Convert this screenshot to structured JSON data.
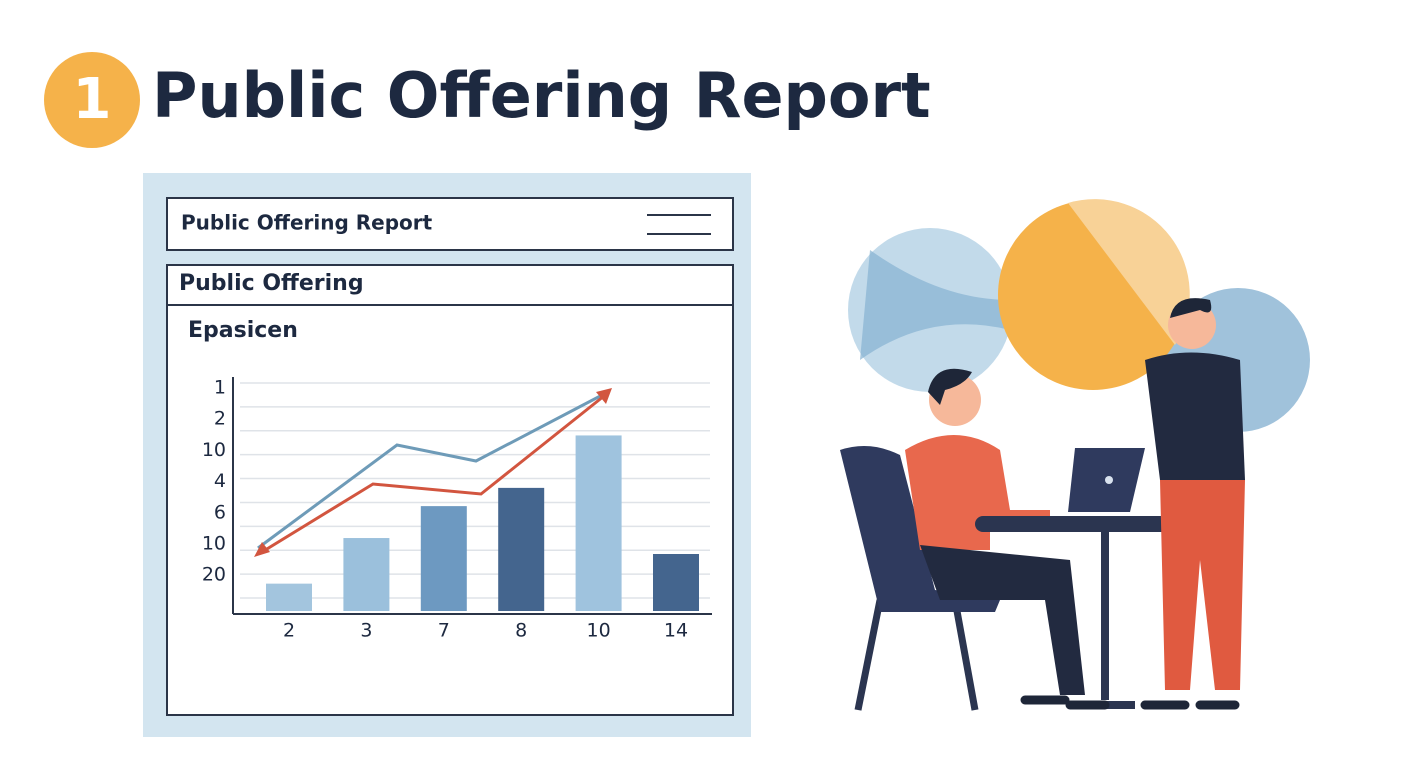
{
  "header": {
    "badge": "1",
    "title": "Public Offering Report"
  },
  "panel": {
    "title": "Public Offering Report",
    "section": "Public Offering",
    "subtitle": "Epasicen"
  },
  "chart_data": {
    "type": "bar",
    "categories": [
      "2",
      "3",
      "7",
      "8",
      "10",
      "14"
    ],
    "values": [
      1.2,
      3.2,
      4.6,
      5.4,
      7.7,
      2.5
    ],
    "colors": [
      "#a3c5de",
      "#9bc0dc",
      "#6d99c1",
      "#44658e",
      "#9fc3de",
      "#44658e"
    ],
    "y_labels": [
      "1",
      "2",
      "10",
      "4",
      "6",
      "10",
      "20"
    ],
    "ylim": [
      0,
      10
    ],
    "grid": true
  }
}
